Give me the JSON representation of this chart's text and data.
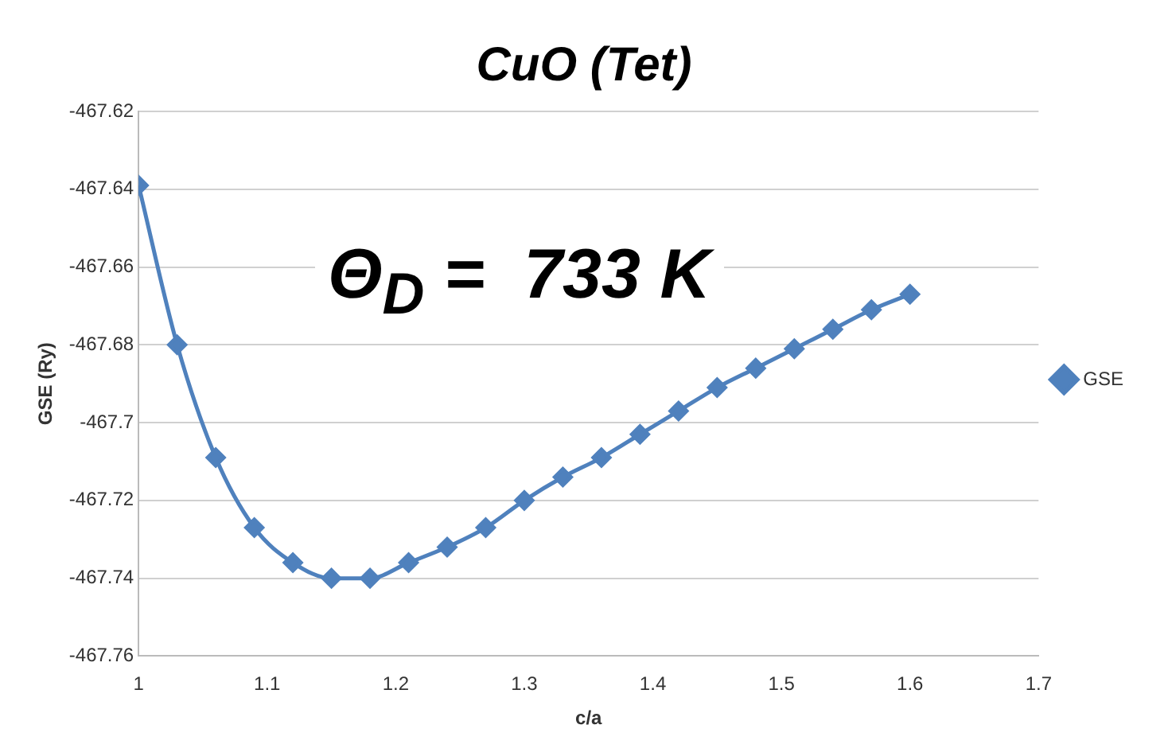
{
  "chart_data": {
    "type": "line",
    "title": "CuO (Tet)",
    "xlabel": "c/a",
    "ylabel": "GSE (Ry)",
    "annotations": [
      "Θ$_{D}$ =  733 K"
    ],
    "x": [
      1.0,
      1.03,
      1.06,
      1.09,
      1.12,
      1.15,
      1.18,
      1.21,
      1.24,
      1.27,
      1.3,
      1.33,
      1.36,
      1.39,
      1.42,
      1.45,
      1.48,
      1.51,
      1.54,
      1.57,
      1.6
    ],
    "series": [
      {
        "name": "GSE",
        "color": "#4f81bd",
        "values": [
          -467.639,
          -467.68,
          -467.709,
          -467.727,
          -467.736,
          -467.74,
          -467.74,
          -467.736,
          -467.732,
          -467.727,
          -467.72,
          -467.714,
          -467.709,
          -467.703,
          -467.697,
          -467.691,
          -467.686,
          -467.681,
          -467.676,
          -467.671,
          -467.667
        ]
      }
    ],
    "xlim": [
      1,
      1.7
    ],
    "xticks": [
      1,
      1.1,
      1.2,
      1.3,
      1.4,
      1.5,
      1.6,
      1.7
    ],
    "ylim": [
      -467.76,
      -467.62
    ],
    "yticks": [
      -467.76,
      -467.74,
      -467.72,
      -467.7,
      -467.68,
      -467.66,
      -467.64,
      -467.62
    ],
    "grid": "y",
    "legend": "right",
    "marker": "diamond",
    "line_style": "solid"
  }
}
